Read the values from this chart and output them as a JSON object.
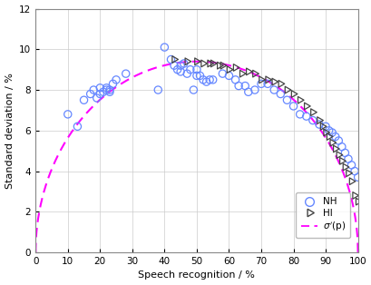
{
  "title": "",
  "xlabel": "Speech recognition / %",
  "ylabel": "Standard deviation / %",
  "xlim": [
    0,
    100
  ],
  "ylim": [
    0,
    12
  ],
  "xticks": [
    0,
    10,
    20,
    30,
    40,
    50,
    60,
    70,
    80,
    90,
    100
  ],
  "yticks": [
    0,
    2,
    4,
    6,
    8,
    10,
    12
  ],
  "NH_color": "#6688ff",
  "HI_color": "#444444",
  "curve_color": "#ff00ff",
  "NH_x": [
    10,
    13,
    15,
    17,
    18,
    19,
    20,
    20,
    21,
    22,
    22,
    23,
    23,
    24,
    25,
    28,
    38,
    40,
    42,
    43,
    44,
    45,
    45,
    46,
    47,
    48,
    49,
    50,
    50,
    51,
    52,
    53,
    54,
    55,
    58,
    60,
    62,
    63,
    65,
    66,
    68,
    70,
    72,
    74,
    76,
    78,
    80,
    82,
    84,
    86,
    88,
    90,
    91,
    92,
    93,
    94,
    95,
    96,
    97,
    98,
    99,
    100
  ],
  "NH_y": [
    6.8,
    6.2,
    7.5,
    7.8,
    8.0,
    7.6,
    7.8,
    8.1,
    7.9,
    8.0,
    8.1,
    7.9,
    8.0,
    8.3,
    8.5,
    8.8,
    8.0,
    10.1,
    9.5,
    9.2,
    9.0,
    9.2,
    8.9,
    9.3,
    8.8,
    9.0,
    8.0,
    8.7,
    9.0,
    8.7,
    8.5,
    8.4,
    8.5,
    8.5,
    8.8,
    8.7,
    8.5,
    8.2,
    8.2,
    7.9,
    8.0,
    8.3,
    8.3,
    8.0,
    7.8,
    7.5,
    7.2,
    6.8,
    6.7,
    6.5,
    6.3,
    6.2,
    6.0,
    5.9,
    5.7,
    5.5,
    5.2,
    4.9,
    4.6,
    4.3,
    4.0,
    3.7
  ],
  "HI_x": [
    43,
    47,
    50,
    52,
    54,
    55,
    57,
    58,
    60,
    62,
    64,
    66,
    68,
    70,
    72,
    74,
    76,
    78,
    80,
    82,
    84,
    86,
    88,
    89,
    90,
    91,
    92,
    93,
    94,
    95,
    96,
    97,
    98,
    99,
    100
  ],
  "HI_y": [
    9.5,
    9.4,
    9.4,
    9.3,
    9.3,
    9.3,
    9.2,
    9.2,
    9.0,
    9.1,
    8.8,
    8.9,
    8.8,
    8.5,
    8.5,
    8.4,
    8.3,
    8.0,
    7.8,
    7.5,
    7.2,
    6.9,
    6.5,
    6.2,
    5.9,
    5.7,
    5.4,
    5.1,
    4.8,
    4.5,
    4.2,
    3.9,
    3.5,
    2.8,
    2.5
  ],
  "background_color": "#ffffff",
  "grid_color": "#cccccc",
  "curve_scale": 0.188
}
